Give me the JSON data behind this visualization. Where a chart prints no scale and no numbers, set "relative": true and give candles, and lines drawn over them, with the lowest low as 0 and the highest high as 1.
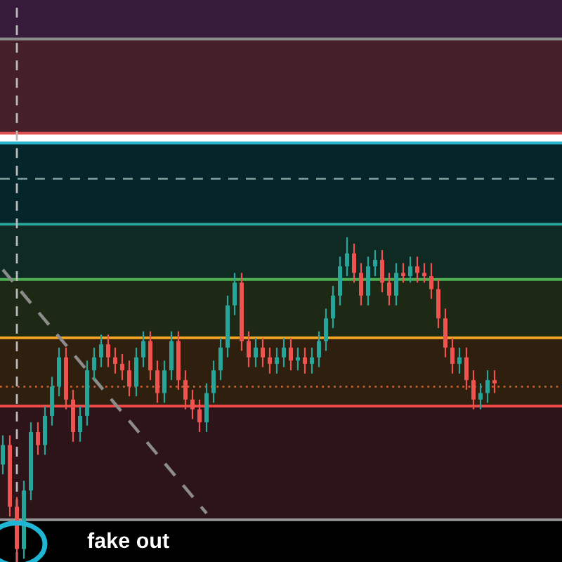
{
  "chart_data": {
    "type": "candlestick",
    "relative": true,
    "categories": [
      null,
      null,
      null,
      null,
      null,
      null,
      null,
      null,
      null,
      null,
      null,
      null,
      null,
      null,
      null,
      null,
      null,
      null,
      null,
      null,
      null,
      null,
      null,
      null,
      null,
      null,
      null,
      null,
      null,
      null,
      null,
      null,
      null,
      null,
      null,
      null,
      null,
      null,
      null,
      null,
      null,
      null,
      null,
      null,
      null,
      null,
      null,
      null,
      null,
      null,
      null,
      null,
      null,
      null,
      null,
      null,
      null,
      null,
      null,
      null,
      null,
      null,
      null,
      null,
      null,
      null,
      null,
      null,
      null,
      null,
      null
    ],
    "ohlc": [
      [
        0.3,
        0.39,
        0.27,
        0.36
      ],
      [
        0.36,
        0.39,
        0.14,
        0.17
      ],
      [
        0.17,
        0.2,
        0.0,
        0.04
      ],
      [
        0.04,
        0.25,
        0.01,
        0.22
      ],
      [
        0.22,
        0.43,
        0.19,
        0.4
      ],
      [
        0.4,
        0.43,
        0.33,
        0.36
      ],
      [
        0.36,
        0.48,
        0.33,
        0.45
      ],
      [
        0.45,
        0.57,
        0.42,
        0.54
      ],
      [
        0.54,
        0.66,
        0.51,
        0.63
      ],
      [
        0.63,
        0.66,
        0.47,
        0.5
      ],
      [
        0.5,
        0.53,
        0.37,
        0.4
      ],
      [
        0.4,
        0.48,
        0.37,
        0.45
      ],
      [
        0.45,
        0.62,
        0.42,
        0.59
      ],
      [
        0.59,
        0.66,
        0.56,
        0.63
      ],
      [
        0.63,
        0.7,
        0.6,
        0.67
      ],
      [
        0.67,
        0.7,
        0.6,
        0.63
      ],
      [
        0.63,
        0.66,
        0.58,
        0.61
      ],
      [
        0.61,
        0.64,
        0.56,
        0.59
      ],
      [
        0.59,
        0.62,
        0.51,
        0.54
      ],
      [
        0.54,
        0.66,
        0.51,
        0.63
      ],
      [
        0.63,
        0.71,
        0.6,
        0.68
      ],
      [
        0.68,
        0.71,
        0.56,
        0.59
      ],
      [
        0.59,
        0.62,
        0.49,
        0.52
      ],
      [
        0.52,
        0.62,
        0.49,
        0.59
      ],
      [
        0.59,
        0.71,
        0.56,
        0.68
      ],
      [
        0.68,
        0.71,
        0.53,
        0.56
      ],
      [
        0.56,
        0.59,
        0.47,
        0.5
      ],
      [
        0.5,
        0.53,
        0.44,
        0.47
      ],
      [
        0.47,
        0.5,
        0.4,
        0.43
      ],
      [
        0.43,
        0.55,
        0.4,
        0.52
      ],
      [
        0.52,
        0.62,
        0.49,
        0.59
      ],
      [
        0.59,
        0.69,
        0.56,
        0.66
      ],
      [
        0.66,
        0.82,
        0.63,
        0.79
      ],
      [
        0.79,
        0.89,
        0.76,
        0.86
      ],
      [
        0.86,
        0.89,
        0.65,
        0.68
      ],
      [
        0.68,
        0.71,
        0.6,
        0.63
      ],
      [
        0.63,
        0.69,
        0.6,
        0.66
      ],
      [
        0.66,
        0.69,
        0.6,
        0.63
      ],
      [
        0.63,
        0.66,
        0.58,
        0.61
      ],
      [
        0.61,
        0.66,
        0.58,
        0.63
      ],
      [
        0.63,
        0.69,
        0.6,
        0.66
      ],
      [
        0.66,
        0.69,
        0.59,
        0.62
      ],
      [
        0.62,
        0.66,
        0.59,
        0.63
      ],
      [
        0.63,
        0.66,
        0.58,
        0.61
      ],
      [
        0.61,
        0.66,
        0.58,
        0.63
      ],
      [
        0.63,
        0.71,
        0.6,
        0.68
      ],
      [
        0.68,
        0.78,
        0.65,
        0.75
      ],
      [
        0.75,
        0.85,
        0.72,
        0.82
      ],
      [
        0.82,
        0.94,
        0.79,
        0.91
      ],
      [
        0.91,
        1.0,
        0.88,
        0.95
      ],
      [
        0.95,
        0.98,
        0.86,
        0.89
      ],
      [
        0.89,
        0.92,
        0.79,
        0.82
      ],
      [
        0.82,
        0.94,
        0.79,
        0.91
      ],
      [
        0.91,
        0.96,
        0.88,
        0.93
      ],
      [
        0.93,
        0.96,
        0.83,
        0.86
      ],
      [
        0.86,
        0.89,
        0.79,
        0.82
      ],
      [
        0.82,
        0.92,
        0.79,
        0.89
      ],
      [
        0.89,
        0.92,
        0.86,
        0.88
      ],
      [
        0.88,
        0.94,
        0.86,
        0.91
      ],
      [
        0.91,
        0.94,
        0.86,
        0.89
      ],
      [
        0.89,
        0.92,
        0.86,
        0.88
      ],
      [
        0.88,
        0.92,
        0.81,
        0.84
      ],
      [
        0.84,
        0.87,
        0.72,
        0.75
      ],
      [
        0.75,
        0.78,
        0.63,
        0.66
      ],
      [
        0.66,
        0.69,
        0.58,
        0.61
      ],
      [
        0.61,
        0.66,
        0.58,
        0.63
      ],
      [
        0.63,
        0.66,
        0.53,
        0.56
      ],
      [
        0.56,
        0.59,
        0.47,
        0.5
      ],
      [
        0.5,
        0.55,
        0.47,
        0.52
      ],
      [
        0.52,
        0.59,
        0.49,
        0.56
      ],
      [
        0.56,
        0.59,
        0.52,
        0.55
      ]
    ],
    "series": [
      {
        "type": "line",
        "values": [
          0.9,
          null,
          null,
          null,
          null,
          null,
          null,
          null,
          null,
          null,
          null,
          null,
          null,
          null,
          null,
          null,
          null,
          null,
          null,
          null,
          null,
          null,
          null,
          null,
          null,
          null,
          null,
          null,
          null,
          0.15,
          null,
          null,
          null,
          null,
          null,
          null,
          null,
          null,
          null,
          null,
          null,
          null,
          null,
          null,
          null,
          null,
          null,
          null,
          null,
          null,
          null,
          null,
          null,
          null,
          null,
          null,
          null,
          null,
          null,
          null,
          null,
          null,
          null,
          null,
          null,
          null,
          null,
          null,
          null,
          null,
          null
        ],
        "color": "#8c8c8c",
        "line_style": "dashed"
      }
    ],
    "bands": [
      {
        "axis": "y",
        "from": 1.61,
        "to": 1.73,
        "color": "#361c3a"
      },
      {
        "axis": "y",
        "from": 1.32,
        "to": 1.61,
        "color": "#45202a"
      },
      {
        "axis": "y",
        "from": 1.04,
        "to": 1.29,
        "color": "#04262a"
      },
      {
        "axis": "y",
        "from": 0.87,
        "to": 1.04,
        "color": "#0e2a22"
      },
      {
        "axis": "y",
        "from": 0.69,
        "to": 0.87,
        "color": "#1e2915"
      },
      {
        "axis": "y",
        "from": 0.48,
        "to": 0.69,
        "color": "#2f1f0f"
      },
      {
        "axis": "y",
        "from": 0.13,
        "to": 0.48,
        "color": "#2c1418"
      },
      {
        "axis": "y",
        "from": 0.0,
        "to": 0.13,
        "color": "#000000"
      }
    ],
    "ref_lines": [
      {
        "axis": "y",
        "value": 1.61,
        "color": "#8a8a8a",
        "line_style": "solid"
      },
      {
        "axis": "y",
        "value": 1.32,
        "color": "#e05050",
        "line_style": "solid"
      },
      {
        "axis": "y",
        "value": 1.29,
        "color": "#26b5d0",
        "line_style": "solid"
      },
      {
        "axis": "y",
        "value": 1.18,
        "color": "#7a9a9a",
        "line_style": "dashed"
      },
      {
        "axis": "y",
        "value": 1.04,
        "color": "#2aa79b",
        "line_style": "solid"
      },
      {
        "axis": "y",
        "value": 0.87,
        "color": "#4caf50",
        "line_style": "solid"
      },
      {
        "axis": "y",
        "value": 0.69,
        "color": "#f5a623",
        "line_style": "solid"
      },
      {
        "axis": "y",
        "value": 0.54,
        "color": "#c06030",
        "line_style": "dotted"
      },
      {
        "axis": "y",
        "value": 0.48,
        "color": "#ef4848",
        "line_style": "solid"
      },
      {
        "axis": "y",
        "value": 0.13,
        "color": "#9a9a9a",
        "line_style": "solid"
      }
    ],
    "annotations": [
      "fake out"
    ]
  }
}
